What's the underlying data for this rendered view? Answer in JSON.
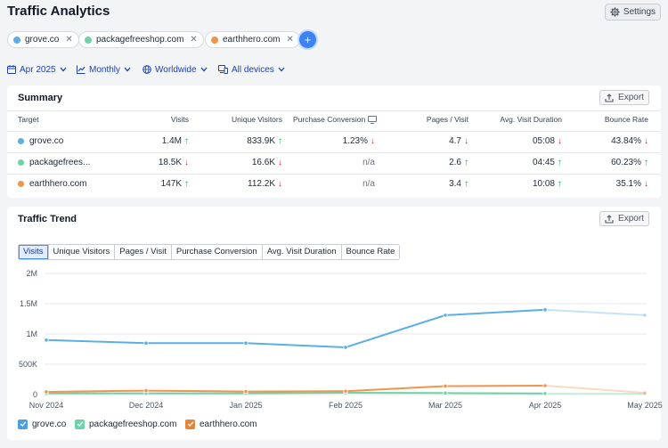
{
  "app": {
    "title": "Traffic Analytics",
    "settings_label": "Settings"
  },
  "competitors": [
    {
      "name": "grove.co",
      "color": "#5aaee6"
    },
    {
      "name": "packagefreeshop.com",
      "color": "#6fd3a8"
    },
    {
      "name": "earthhero.com",
      "color": "#f0944e"
    }
  ],
  "filters": {
    "date": "Apr 2025",
    "granularity": "Monthly",
    "region": "Worldwide",
    "device": "All devices"
  },
  "summary": {
    "title": "Summary",
    "export_label": "Export",
    "columns": [
      "Target",
      "Visits",
      "Unique Visitors",
      "Purchase Conversion",
      "Pages / Visit",
      "Avg. Visit Duration",
      "Bounce Rate"
    ],
    "rows": [
      {
        "target": "grove.co",
        "color": "#5aaee6",
        "visits": "1.4M",
        "visits_dir": "up",
        "unique": "833.9K",
        "unique_dir": "up",
        "conversion": "1.23%",
        "conversion_dir": "down",
        "pages": "4.7",
        "pages_dir": "down",
        "duration": "05:08",
        "duration_dir": "down",
        "bounce": "43.84%",
        "bounce_dir": "down"
      },
      {
        "target": "packagefrees...",
        "color": "#6fd3a8",
        "visits": "18.5K",
        "visits_dir": "down",
        "unique": "16.6K",
        "unique_dir": "down",
        "conversion": "n/a",
        "conversion_dir": "",
        "pages": "2.6",
        "pages_dir": "up",
        "duration": "04:45",
        "duration_dir": "up",
        "bounce": "60.23%",
        "bounce_dir": "up"
      },
      {
        "target": "earthhero.com",
        "color": "#f0944e",
        "visits": "147K",
        "visits_dir": "up",
        "unique": "112.2K",
        "unique_dir": "down",
        "conversion": "n/a",
        "conversion_dir": "",
        "pages": "3.4",
        "pages_dir": "up",
        "duration": "10:08",
        "duration_dir": "up",
        "bounce": "35.1%",
        "bounce_dir": "down"
      }
    ]
  },
  "trend": {
    "title": "Traffic Trend",
    "export_label": "Export",
    "tabs": [
      "Visits",
      "Unique Visitors",
      "Pages / Visit",
      "Purchase Conversion",
      "Avg. Visit Duration",
      "Bounce Rate"
    ],
    "active_tab": "Visits",
    "legend": [
      {
        "name": "grove.co",
        "color": "#4a9fe0"
      },
      {
        "name": "packagefreeshop.com",
        "color": "#6fd3a8"
      },
      {
        "name": "earthhero.com",
        "color": "#e8833a"
      }
    ]
  },
  "chart_data": {
    "type": "line",
    "categories": [
      "Nov 2024",
      "Dec 2024",
      "Jan 2025",
      "Feb 2025",
      "Mar 2025",
      "Apr 2025",
      "May 2025"
    ],
    "y_ticks": [
      "0",
      "500K",
      "1M",
      "1.5M",
      "2M"
    ],
    "ylim": [
      0,
      2000000
    ],
    "grid": true,
    "legend_position": "bottom-left",
    "series": [
      {
        "name": "grove.co",
        "color": "#5aaee6",
        "values": [
          900000,
          850000,
          850000,
          780000,
          1310000,
          1400000,
          1310000
        ],
        "projected_last": true
      },
      {
        "name": "packagefreeshop.com",
        "color": "#6fd3a8",
        "values": [
          20000,
          20000,
          20000,
          30000,
          25000,
          18500,
          15000
        ],
        "projected_last": true
      },
      {
        "name": "earthhero.com",
        "color": "#f0944e",
        "values": [
          45000,
          65000,
          50000,
          55000,
          140000,
          147000,
          30000
        ],
        "projected_last": true
      }
    ]
  }
}
